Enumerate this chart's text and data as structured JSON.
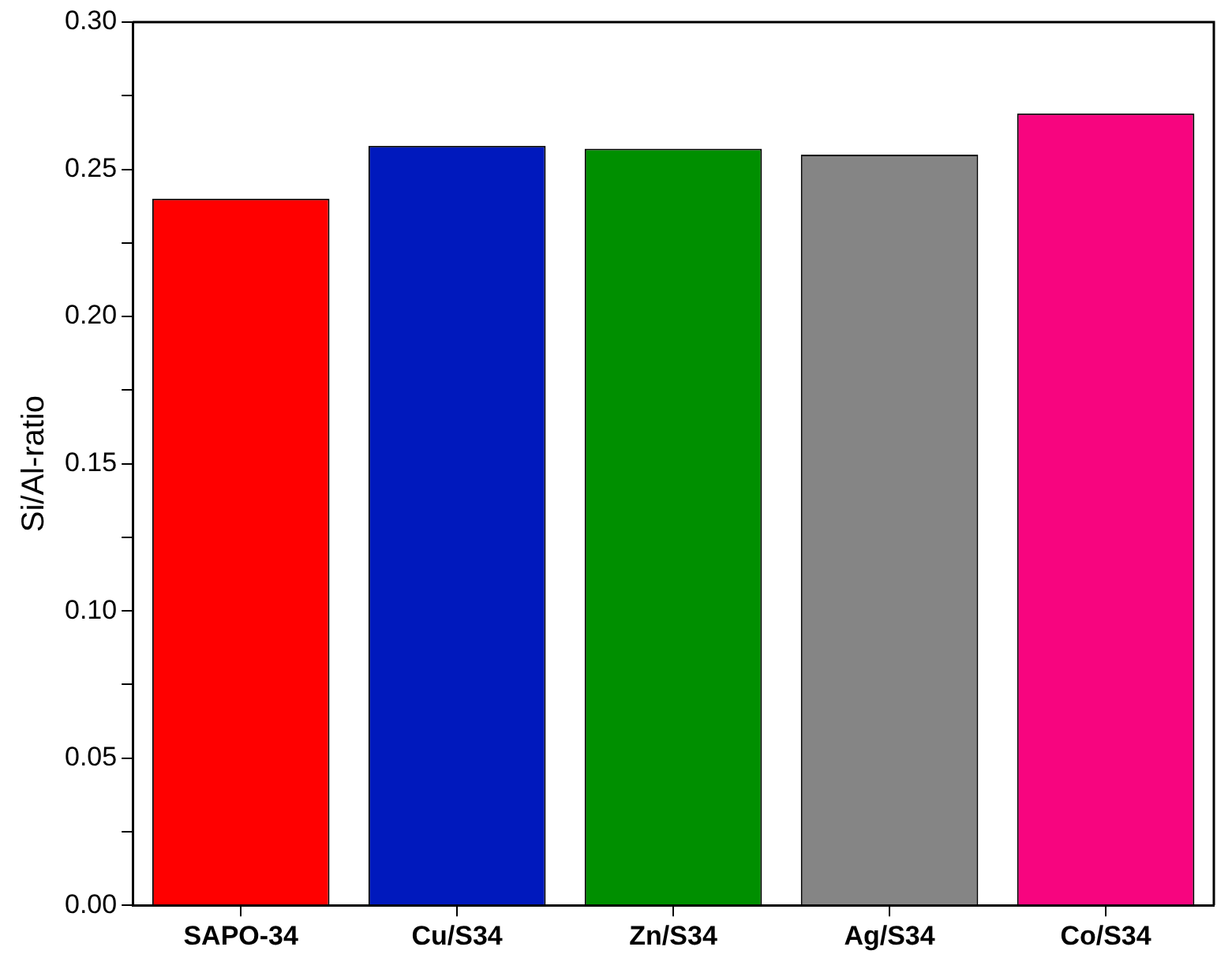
{
  "chart_data": {
    "type": "bar",
    "ylabel": "Si/Al-ratio",
    "categories": [
      "SAPO-34",
      "Cu/S34",
      "Zn/S34",
      "Ag/S34",
      "Co/S34"
    ],
    "values": [
      0.24,
      0.258,
      0.257,
      0.255,
      0.269
    ],
    "colors": [
      "#ff0000",
      "#0019bd",
      "#008f00",
      "#858585",
      "#f7057f"
    ],
    "ylim": [
      0,
      0.3
    ],
    "yticks": [
      {
        "value": 0,
        "label": "0.00"
      },
      {
        "value": 0.025,
        "label": null
      },
      0.05,
      {
        "value": 0.075,
        "label": null
      },
      {
        "value": 0.1,
        "label": "0.10"
      },
      {
        "value": 0.125,
        "label": null
      },
      0.15,
      {
        "value": 0.175,
        "label": null
      },
      {
        "value": 0.2,
        "label": "0.20"
      },
      {
        "value": 0.225,
        "label": null
      },
      0.25,
      {
        "value": 0.275,
        "label": null
      },
      {
        "value": 0.3,
        "label": "0.30"
      }
    ],
    "grid": false,
    "legend": false
  }
}
